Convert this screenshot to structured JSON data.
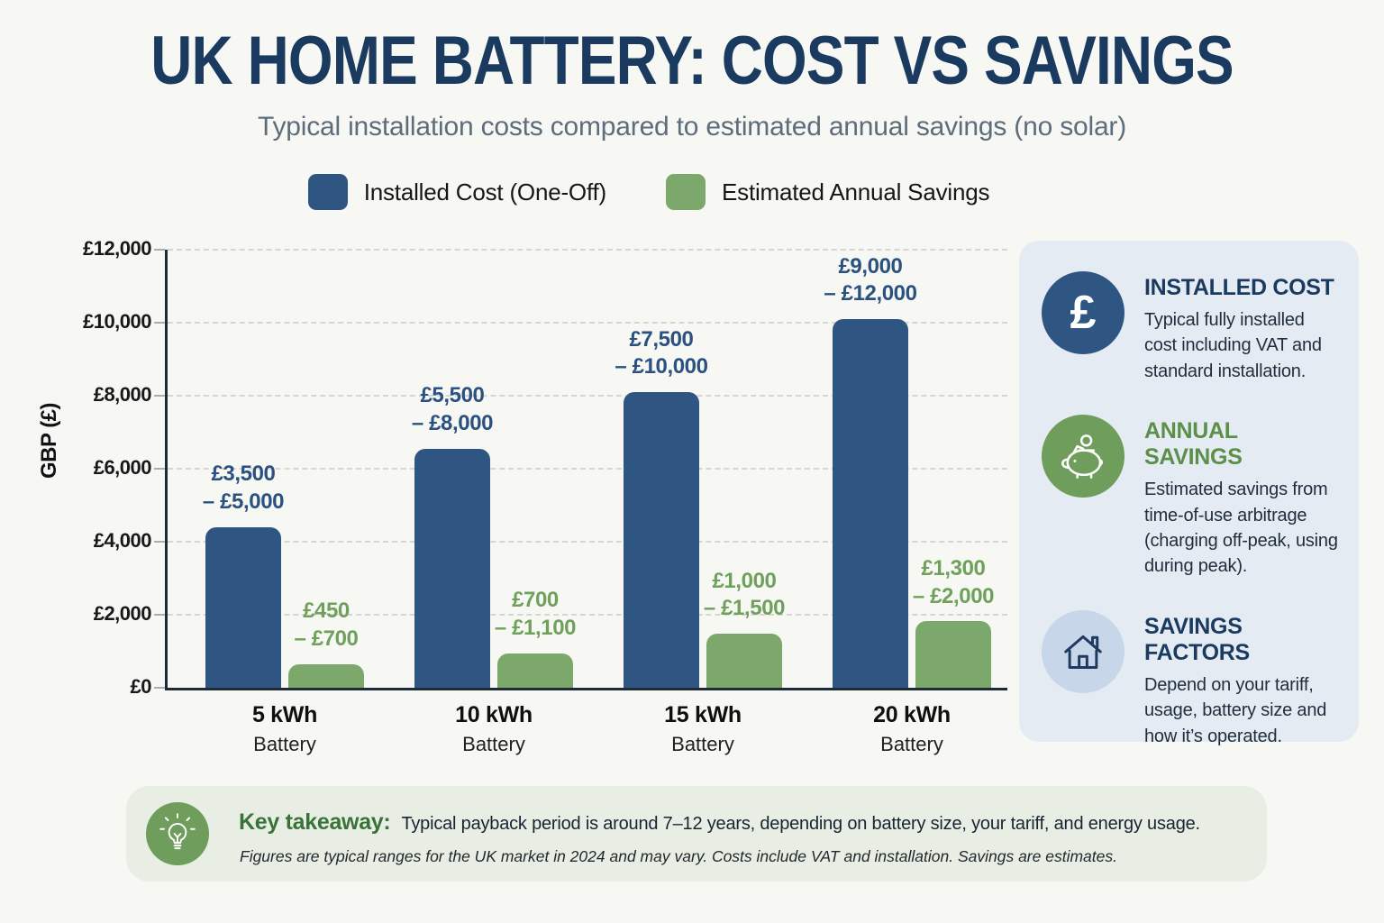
{
  "header": {
    "title": "UK HOME BATTERY: COST VS SAVINGS",
    "subtitle": "Typical installation costs compared to estimated annual savings (no solar)"
  },
  "legend": [
    {
      "label": "Installed Cost (One-Off)",
      "color": "#2F5582"
    },
    {
      "label": "Estimated Annual Savings",
      "color": "#7CA96B"
    }
  ],
  "chart_data": {
    "type": "bar",
    "title": "UK HOME BATTERY: COST VS SAVINGS",
    "categories": [
      "5 kWh",
      "10 kWh",
      "15 kWh",
      "20 kWh"
    ],
    "category_sub": "Battery",
    "ylabel": "GBP (£)",
    "ylim": [
      0,
      12000
    ],
    "ytick_step": 2000,
    "ytick_labels": [
      "£0",
      "£2,000",
      "£4,000",
      "£6,000",
      "£8,000",
      "£10,000",
      "£12,000"
    ],
    "grid": "horizontal-dashed",
    "legend_position": "top",
    "series": [
      {
        "name": "Installed Cost (One-Off)",
        "color": "#2F5582",
        "label_color": "#2B5180",
        "ranges": [
          [
            3500,
            5000
          ],
          [
            5500,
            8000
          ],
          [
            7500,
            10000
          ],
          [
            9000,
            12000
          ]
        ],
        "values": [
          4400,
          6550,
          8100,
          10100
        ],
        "range_labels": [
          [
            "£3,500",
            "– £5,000"
          ],
          [
            "£5,500",
            "– £8,000"
          ],
          [
            "£7,500",
            "– £10,000"
          ],
          [
            "£9,000",
            "– £12,000"
          ]
        ]
      },
      {
        "name": "Estimated Annual Savings",
        "color": "#7CA96B",
        "label_color": "#6FA05C",
        "ranges": [
          [
            450,
            700
          ],
          [
            700,
            1100
          ],
          [
            1000,
            1500
          ],
          [
            1300,
            2000
          ]
        ],
        "values": [
          650,
          950,
          1480,
          1820
        ],
        "range_labels": [
          [
            "£450",
            "– £700"
          ],
          [
            "£700",
            "– £1,100"
          ],
          [
            "£1,000",
            "– £1,500"
          ],
          [
            "£1,300",
            "– £2,000"
          ]
        ]
      }
    ]
  },
  "sidebar": {
    "cards": [
      {
        "icon": "pound-sterling-icon",
        "title": "INSTALLED COST",
        "body": "Typical fully installed cost including VAT and standard installation.",
        "circle_color": "#2F5582",
        "title_color": "#1B3A5F"
      },
      {
        "icon": "piggy-bank-icon",
        "title": "ANNUAL SAVINGS",
        "body": "Estimated savings from time-of-use arbitrage (charging off-peak, using during peak).",
        "circle_color": "#6F9D5C",
        "title_color": "#5C8F4A"
      },
      {
        "icon": "house-icon",
        "title": "SAVINGS FACTORS",
        "body": "Depend on your tariff, usage, battery size and how it’s operated.",
        "circle_color": "#C8D6EA",
        "title_color": "#1B3A5F"
      }
    ]
  },
  "takeaway": {
    "icon": "lightbulb-icon",
    "label": "Key takeaway:",
    "text": "Typical payback period is around 7–12 years, depending on battery size, your tariff, and energy usage.",
    "footnote": "Figures are typical ranges for the UK market in 2024 and may vary. Costs include VAT and installation. Savings are estimates."
  },
  "colors": {
    "background": "#F7F8F4",
    "title_navy": "#1B3A5F",
    "subtitle_gray": "#5E6C7B",
    "installed_blue": "#2F5582",
    "savings_green": "#7CA96B",
    "sidebar_bg": "#E5EBF3",
    "banner_bg": "#E8EEE3",
    "banner_circle_green": "#6F9D5C",
    "grid_gray": "#D4D7D3"
  }
}
